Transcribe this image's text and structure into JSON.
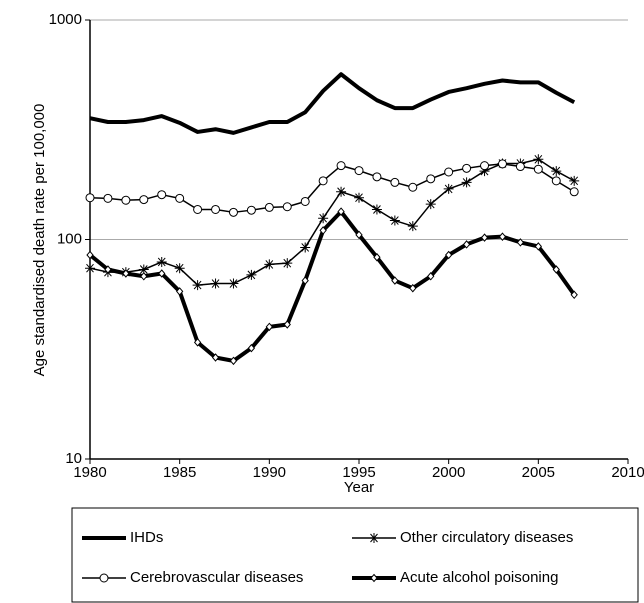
{
  "chart_data": {
    "type": "line",
    "x_label": "Year",
    "y_label": "Age standardised death rate per 100,000",
    "x": [
      1980,
      1981,
      1982,
      1983,
      1984,
      1985,
      1986,
      1987,
      1988,
      1989,
      1990,
      1991,
      1992,
      1993,
      1994,
      1995,
      1996,
      1997,
      1998,
      1999,
      2000,
      2001,
      2002,
      2003,
      2004,
      2005,
      2006,
      2007
    ],
    "xlim": [
      1980,
      2010
    ],
    "xticks": [
      1980,
      1985,
      1990,
      1995,
      2000,
      2005,
      2010
    ],
    "ylim": [
      10,
      1000
    ],
    "yticks": [
      10,
      100,
      1000
    ],
    "log_y": true,
    "grid": true,
    "legend": "bottom",
    "series": [
      {
        "name": "IHDs",
        "color": "#000000",
        "width": 4,
        "marker": "none",
        "values": [
          357,
          343,
          343,
          350,
          365,
          340,
          309,
          318,
          306,
          324,
          343,
          343,
          380,
          475,
          566,
          489,
          431,
          397,
          397,
          434,
          470,
          489,
          512,
          530,
          520,
          520,
          466,
          422
        ]
      },
      {
        "name": "Other circulatory diseases",
        "color": "#000000",
        "width": 1.5,
        "marker": "star",
        "values": [
          74,
          71,
          71,
          73,
          79,
          74,
          62,
          63,
          63,
          69,
          77,
          78,
          92,
          125,
          165,
          155,
          137,
          122,
          115,
          145,
          170,
          182,
          205,
          222,
          222,
          232,
          205,
          185
        ]
      },
      {
        "name": "Cerebrovascular diseases",
        "color": "#000000",
        "width": 1.5,
        "marker": "circle",
        "values": [
          155,
          154,
          151,
          152,
          160,
          154,
          137,
          137,
          133,
          136,
          140,
          141,
          149,
          185,
          217,
          206,
          193,
          182,
          173,
          189,
          203,
          211,
          217,
          221,
          215,
          209,
          185,
          165
        ]
      },
      {
        "name": "Acute alcohol poisoning",
        "color": "#000000",
        "width": 4,
        "marker": "diamond",
        "values": [
          85,
          73,
          70,
          68,
          70,
          58,
          34,
          29,
          28,
          32,
          40,
          41,
          65,
          110,
          134,
          105,
          83,
          65,
          60,
          68,
          85,
          95,
          102,
          103,
          97,
          93,
          73,
          56
        ]
      }
    ]
  }
}
